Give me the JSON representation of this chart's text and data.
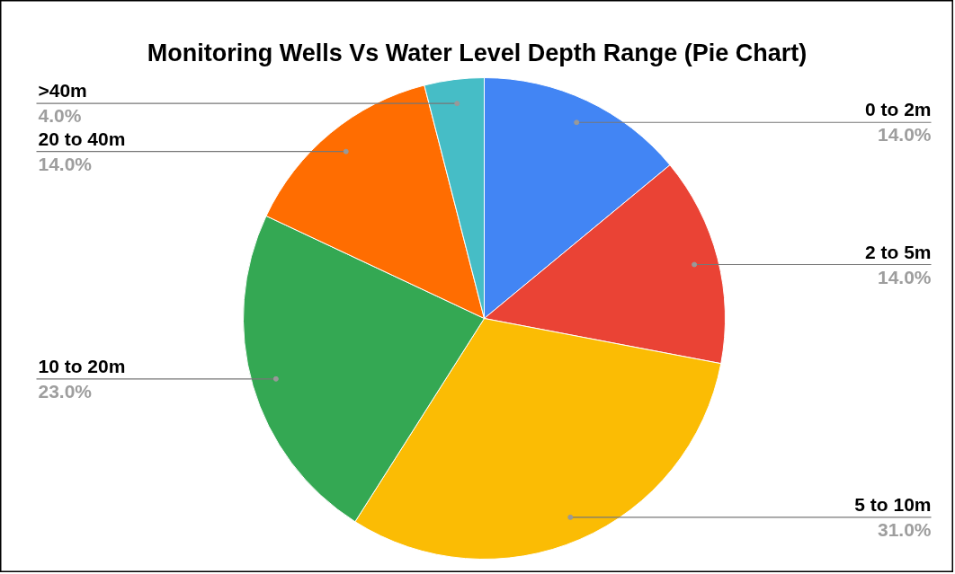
{
  "chart_data": {
    "type": "pie",
    "title": "Monitoring Wells Vs Water Level Depth Range (Pie Chart)",
    "categories": [
      "0 to 2m",
      "2 to 5m",
      "5 to 10m",
      "10 to 20m",
      "20 to 40m",
      ">40m"
    ],
    "values": [
      14,
      14,
      31,
      23,
      14,
      4
    ],
    "value_labels": [
      "14.0%",
      "14.0%",
      "31.0%",
      "23.0%",
      "14.0%",
      "4.0%"
    ],
    "colors": [
      "#4285f4",
      "#ea4335",
      "#fbbc04",
      "#34a853",
      "#ff6d01",
      "#46bdc6"
    ]
  }
}
